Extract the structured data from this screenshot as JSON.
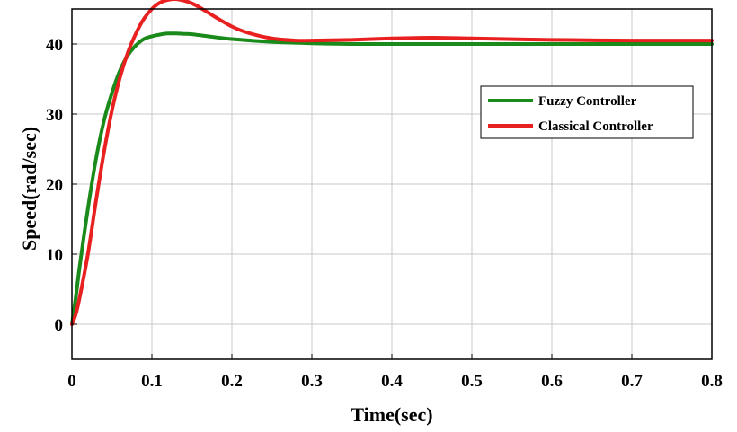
{
  "chart_data": {
    "type": "line",
    "title": "",
    "xlabel": "Time(sec)",
    "ylabel": "Speed(rad/sec)",
    "xlim": [
      0,
      0.8
    ],
    "ylim": [
      -5,
      45
    ],
    "xticks": [
      "0",
      "0.1",
      "0.2",
      "0.3",
      "0.4",
      "0.5",
      "0.6",
      "0.7",
      "0.8"
    ],
    "yticks": [
      "0",
      "10",
      "20",
      "30",
      "40"
    ],
    "grid": true,
    "legend_position": "upper-right",
    "series": [
      {
        "name": "Fuzzy Controller",
        "color": "#1a8a1a",
        "x": [
          0,
          0.005,
          0.01,
          0.02,
          0.03,
          0.04,
          0.05,
          0.06,
          0.07,
          0.08,
          0.09,
          0.1,
          0.11,
          0.12,
          0.13,
          0.14,
          0.15,
          0.17,
          0.2,
          0.25,
          0.3,
          0.35,
          0.4,
          0.5,
          0.6,
          0.7,
          0.8
        ],
        "values": [
          0,
          4.0,
          8.5,
          16.5,
          23.5,
          29.0,
          33.0,
          36.2,
          38.4,
          39.8,
          40.7,
          41.1,
          41.35,
          41.5,
          41.5,
          41.45,
          41.4,
          41.1,
          40.7,
          40.3,
          40.1,
          40.0,
          40.0,
          40.0,
          40.0,
          40.0,
          40.0
        ]
      },
      {
        "name": "Classical Controller",
        "color": "#e82020",
        "x": [
          0,
          0.005,
          0.01,
          0.02,
          0.03,
          0.04,
          0.05,
          0.06,
          0.07,
          0.08,
          0.09,
          0.1,
          0.11,
          0.12,
          0.13,
          0.14,
          0.15,
          0.16,
          0.18,
          0.2,
          0.22,
          0.25,
          0.28,
          0.3,
          0.35,
          0.4,
          0.45,
          0.5,
          0.6,
          0.7,
          0.8
        ],
        "values": [
          0,
          1.5,
          4.0,
          10.0,
          17.5,
          24.5,
          30.5,
          35.2,
          38.8,
          41.5,
          43.6,
          45.0,
          45.9,
          46.3,
          46.4,
          46.2,
          45.8,
          45.2,
          43.8,
          42.5,
          41.6,
          40.8,
          40.5,
          40.5,
          40.6,
          40.8,
          40.9,
          40.8,
          40.6,
          40.5,
          40.5
        ]
      }
    ]
  }
}
